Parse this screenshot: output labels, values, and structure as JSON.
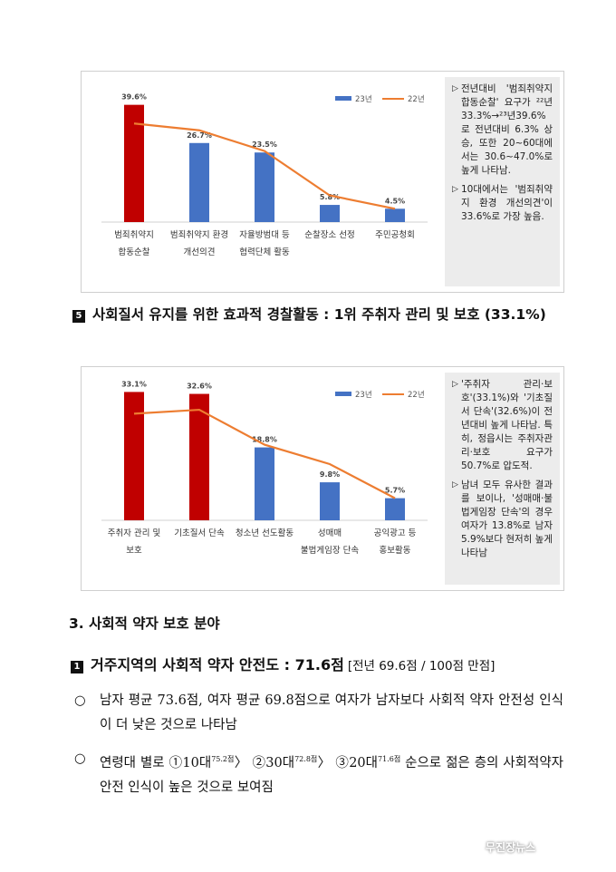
{
  "chart_data": [
    {
      "type": "bar",
      "categories": [
        "범죄취약지\n합동순찰",
        "범죄취약지 환경\n개선의견",
        "자율방범대 등\n협력단체 활동",
        "순찰장소 선정",
        "주민공청회"
      ],
      "series": [
        {
          "name": "23년",
          "type": "bar",
          "values": [
            39.6,
            26.7,
            23.5,
            5.8,
            4.5
          ],
          "data_labels": [
            "39.6%",
            "26.7%",
            "23.5%",
            "5.8%",
            "4.5%"
          ]
        },
        {
          "name": "22년",
          "type": "line",
          "values": [
            33.3,
            31.0,
            24.0,
            9.0,
            4.5
          ]
        }
      ],
      "highlight_index": 0,
      "ylim": [
        0,
        45
      ],
      "colors": {
        "bar": "#4472c4",
        "highlight": "#c00000",
        "line": "#ed7d31"
      },
      "legend": "top-right",
      "grid": false
    },
    {
      "type": "bar",
      "categories": [
        "주취자 관리 및\n보호",
        "기초질서 단속",
        "청소년 선도활동",
        "성매매\n불법게임장 단속",
        "공익광고 등\n홍보활동"
      ],
      "series": [
        {
          "name": "23년",
          "type": "bar",
          "values": [
            33.1,
            32.6,
            18.8,
            9.8,
            5.7
          ],
          "data_labels": [
            "33.1%",
            "32.6%",
            "18.8%",
            "9.8%",
            "5.7%"
          ]
        },
        {
          "name": "22년",
          "type": "line",
          "values": [
            27.5,
            28.5,
            19.5,
            14.5,
            5.7
          ]
        }
      ],
      "highlight_index": [
        0,
        1
      ],
      "ylim": [
        0,
        36
      ],
      "colors": {
        "bar": "#4472c4",
        "highlight": "#c00000",
        "line": "#ed7d31"
      },
      "legend": "top-right",
      "grid": false
    }
  ],
  "notes1": [
    {
      "arrow": "▷",
      "text": "전년대비 '범죄취약지 합동순찰' 요구가 ²²년33.3%→²³년39.6%로 전년대비 6.3% 상승, 또한 20~60대에서는 30.6~47.0%로 높게 나타남."
    },
    {
      "arrow": "▷",
      "text": "10대에서는 '범죄취약지 환경 개선의견'이 33.6%로 가장 높음."
    }
  ],
  "notes2": [
    {
      "arrow": "▷",
      "text": "'주취자 관리·보호'(33.1%)와 '기초질서 단속'(32.6%)이 전년대비 높게 나타남. 특히, 정읍시는 주취자관리·보호 요구가 50.7%로 압도적."
    },
    {
      "arrow": "▷",
      "text": "남녀 모두 유사한 결과를 보이나, '성매매·불법게임장 단속'의 경우 여자가 13.8%로 남자 5.9%보다 현저히 높게 나타남"
    }
  ],
  "heading5": {
    "num": "5",
    "text": "사회질서 유지를 위한 효과적 경찰활동 : 1위 주취자 관리 및 보호 (33.1%)"
  },
  "section3": "3. 사회적 약자 보호 분야",
  "heading1": {
    "num": "1",
    "text": "거주지역의 사회적 약자 안전도 : 71.6점",
    "sub": "[전년 69.6점 / 100점 만점]"
  },
  "bullets": [
    {
      "circ": "○",
      "text": "남자 평균 73.6점, 여자 평균 69.8점으로 여자가 남자보다 사회적 약자 안전성 인식이 더 낮은 것으로 나타남"
    },
    {
      "circ": "○",
      "text_pre": "연령대 별로 ①10대",
      "s1": "75.2점",
      "mid1": "〉 ②30대",
      "s2": "72.8점",
      "mid2": "〉 ③20대",
      "s3": "71.6점",
      "text_post": " 순으로 젊은 층의 사회적약자 안전 인식이 높은 것으로 보여짐"
    }
  ],
  "logo": "무진장뉴스"
}
